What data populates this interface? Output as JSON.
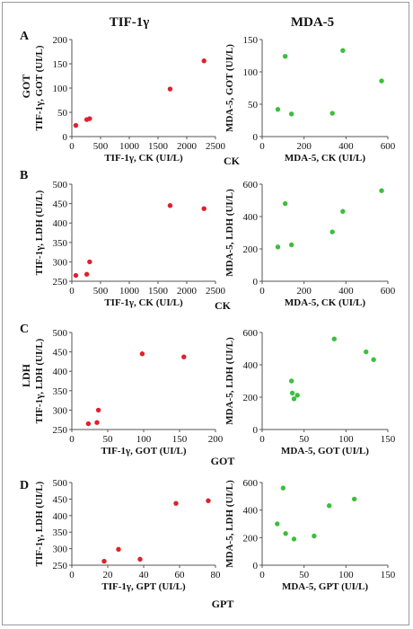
{
  "headers": {
    "left": "TIF-1γ",
    "right": "MDA-5"
  },
  "rows": [
    {
      "letter": "A",
      "side_label": "GOT",
      "bottom_label": "CK"
    },
    {
      "letter": "B",
      "side_label": "",
      "bottom_label": "CK"
    },
    {
      "letter": "C",
      "side_label": "LDH",
      "bottom_label": "GOT"
    },
    {
      "letter": "D",
      "side_label": "",
      "bottom_label": "GPT"
    }
  ],
  "colors": {
    "tif": "#e0202a",
    "mda": "#3cbf3c",
    "axis": "#555555"
  },
  "chart_data": [
    {
      "id": "A-left",
      "type": "scatter",
      "xlabel": "TIF-1γ, CK (UI/L)",
      "ylabel": "TIF-1γ, GOT (UI/L)",
      "xlim": [
        0,
        2500
      ],
      "ylim": [
        0,
        200
      ],
      "xticks": [
        0,
        500,
        1000,
        1500,
        2000,
        2500
      ],
      "yticks": [
        0,
        50,
        100,
        150,
        200
      ],
      "series": [
        {
          "color": "tif",
          "x": [
            70,
            260,
            310,
            1710,
            2300
          ],
          "y": [
            23,
            35,
            37,
            98,
            156
          ]
        }
      ]
    },
    {
      "id": "A-right",
      "type": "scatter",
      "xlabel": "MDA-5, CK (UI/L)",
      "ylabel": "MDA-5, GOT (UI/L)",
      "xlim": [
        0,
        600
      ],
      "ylim": [
        0,
        150
      ],
      "xticks": [
        0,
        200,
        400,
        600
      ],
      "yticks": [
        0,
        50,
        100,
        150
      ],
      "series": [
        {
          "color": "mda",
          "x": [
            75,
            110,
            140,
            335,
            385,
            570
          ],
          "y": [
            42,
            124,
            35,
            36,
            133,
            86
          ]
        }
      ]
    },
    {
      "id": "B-left",
      "type": "scatter",
      "xlabel": "TIF-1γ, CK (UI/L)",
      "ylabel": "TIF-1γ, LDH (UI/L)",
      "xlim": [
        0,
        2500
      ],
      "ylim": [
        250,
        500
      ],
      "xticks": [
        0,
        500,
        1000,
        1500,
        2000,
        2500
      ],
      "yticks": [
        250,
        300,
        350,
        400,
        450,
        500
      ],
      "series": [
        {
          "color": "tif",
          "x": [
            70,
            260,
            310,
            1710,
            2300
          ],
          "y": [
            265,
            268,
            300,
            445,
            437
          ]
        }
      ]
    },
    {
      "id": "B-right",
      "type": "scatter",
      "xlabel": "MDA-5, CK (UI/L)",
      "ylabel": "MDA-5, LDH (UI/L)",
      "xlim": [
        0,
        600
      ],
      "ylim": [
        0,
        600
      ],
      "xticks": [
        0,
        200,
        400,
        600
      ],
      "yticks": [
        0,
        200,
        400,
        600
      ],
      "series": [
        {
          "color": "mda",
          "x": [
            75,
            110,
            140,
            335,
            385,
            570
          ],
          "y": [
            212,
            480,
            225,
            305,
            432,
            560
          ]
        }
      ]
    },
    {
      "id": "C-left",
      "type": "scatter",
      "xlabel": "TIF-1γ, GOT (UI/L)",
      "ylabel": "TIF-1γ, LDH (UI/L)",
      "xlim": [
        0,
        200
      ],
      "ylim": [
        250,
        500
      ],
      "xticks": [
        0,
        50,
        100,
        150,
        200
      ],
      "yticks": [
        250,
        300,
        350,
        400,
        450,
        500
      ],
      "series": [
        {
          "color": "tif",
          "x": [
            23,
            35,
            37,
            98,
            156
          ],
          "y": [
            265,
            268,
            300,
            445,
            437
          ]
        }
      ]
    },
    {
      "id": "C-right",
      "type": "scatter",
      "xlabel": "MDA-5, GOT (UI/L)",
      "ylabel": "MDA-5, LDH (UI/L)",
      "xlim": [
        0,
        150
      ],
      "ylim": [
        0,
        600
      ],
      "xticks": [
        0,
        50,
        100,
        150
      ],
      "yticks": [
        0,
        200,
        400,
        600
      ],
      "series": [
        {
          "color": "mda",
          "x": [
            35,
            36,
            38,
            42,
            86,
            124,
            133
          ],
          "y": [
            300,
            225,
            190,
            212,
            560,
            480,
            432
          ]
        }
      ]
    },
    {
      "id": "D-left",
      "type": "scatter",
      "xlabel": "TIF-1γ, GPT (UI/L)",
      "ylabel": "TIF-1γ, LDH (UI/L)",
      "xlim": [
        0,
        80
      ],
      "ylim": [
        250,
        500
      ],
      "xticks": [
        0,
        20,
        40,
        60,
        80
      ],
      "yticks": [
        250,
        300,
        350,
        400,
        450,
        500
      ],
      "series": [
        {
          "color": "tif",
          "x": [
            18,
            26,
            38,
            58,
            76
          ],
          "y": [
            262,
            298,
            268,
            437,
            445
          ]
        }
      ]
    },
    {
      "id": "D-right",
      "type": "scatter",
      "xlabel": "MDA-5, GPT (UI/L)",
      "ylabel": "MDA-5, LDH (UI/L)",
      "xlim": [
        0,
        150
      ],
      "ylim": [
        0,
        600
      ],
      "xticks": [
        0,
        50,
        100,
        150
      ],
      "yticks": [
        0,
        200,
        400,
        600
      ],
      "series": [
        {
          "color": "mda",
          "x": [
            18,
            25,
            28,
            38,
            62,
            80,
            110
          ],
          "y": [
            300,
            560,
            230,
            190,
            212,
            432,
            480
          ]
        }
      ]
    }
  ]
}
